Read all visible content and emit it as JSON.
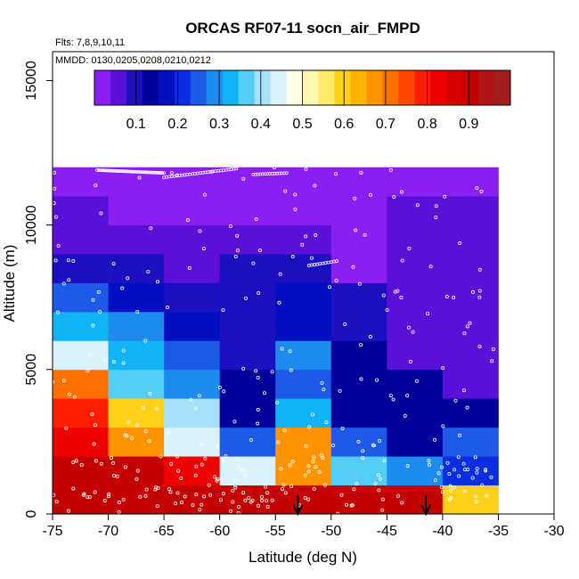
{
  "title": "ORCAS RF07-11 socn_air_FMPD",
  "flights_note": "Flts: 7,8,9,10,11",
  "dates_note": "MMDD: 0130,0205,0208,0210,0212",
  "chart_data": {
    "type": "heatmap",
    "title": "ORCAS RF07-11 socn_air_FMPD",
    "xlabel": "Latitude (deg N)",
    "ylabel": "Altitude (m)",
    "xlim": [
      -75,
      -30
    ],
    "ylim": [
      0,
      16000
    ],
    "x_ticks": [
      -75,
      -70,
      -65,
      -60,
      -55,
      -50,
      -45,
      -40,
      -35,
      -30
    ],
    "x_tick_labels": [
      "-75",
      "-70",
      "-65",
      "-60",
      "-55",
      "-50",
      "-45",
      "-40",
      "-35",
      "-30"
    ],
    "y_ticks": [
      0,
      5000,
      10000,
      15000
    ],
    "y_tick_labels": [
      "0",
      "5000",
      "10000",
      "15000"
    ],
    "grid": false,
    "lat_bins": [
      -75,
      -70,
      -65,
      -60,
      -55,
      -50,
      -45,
      -40,
      -35
    ],
    "alt_bins": [
      0,
      1000,
      2000,
      3000,
      4000,
      5000,
      6000,
      7000,
      8000,
      9000,
      10000,
      11000,
      12000
    ],
    "values_by_alt_row": [
      [
        0.9,
        0.9,
        0.9,
        0.92,
        0.92,
        0.92,
        0.92,
        0.6
      ],
      [
        0.92,
        0.92,
        0.83,
        0.46,
        0.66,
        0.36,
        0.3,
        0.22
      ],
      [
        0.82,
        0.66,
        0.46,
        0.24,
        0.66,
        0.24,
        0.14,
        0.24
      ],
      [
        0.77,
        0.6,
        0.4,
        0.12,
        0.32,
        0.14,
        0.14,
        0.12
      ],
      [
        0.7,
        0.38,
        0.3,
        0.12,
        0.24,
        0.12,
        0.12,
        0.05
      ],
      [
        0.44,
        0.32,
        0.24,
        0.1,
        0.28,
        0.12,
        0.05,
        0.04
      ],
      [
        0.32,
        0.3,
        0.18,
        0.1,
        0.18,
        0.1,
        0.05,
        0.04
      ],
      [
        0.24,
        0.18,
        0.1,
        0.1,
        0.16,
        0.08,
        0.04,
        0.04
      ],
      [
        0.1,
        0.1,
        0.05,
        0.1,
        0.1,
        0.03,
        0.04,
        0.04
      ],
      [
        0.06,
        0.05,
        0.04,
        0.04,
        0.05,
        0.03,
        0.04,
        0.04
      ],
      [
        0.04,
        0.03,
        0.03,
        0.03,
        0.02,
        0.03,
        0.04,
        0.04
      ],
      [
        0.02,
        0.02,
        0.02,
        0.02,
        0.02,
        0.02,
        0.02,
        0.02
      ]
    ],
    "arrow_latitudes": [
      -53,
      -41.5
    ],
    "colorbar": {
      "range": [
        0,
        1
      ],
      "ticks": [
        0.1,
        0.2,
        0.3,
        0.4,
        0.5,
        0.6,
        0.7,
        0.8,
        0.9
      ],
      "tick_labels": [
        "0.1",
        "0.2",
        "0.3",
        "0.4",
        "0.5",
        "0.6",
        "0.7",
        "0.8",
        "0.9"
      ],
      "colors": [
        "#8B1EF2",
        "#5A10D8",
        "#1C0FC0",
        "#00009A",
        "#0010C0",
        "#0A2DE0",
        "#1E5AE8",
        "#1E8CEE",
        "#10B4F5",
        "#55CDF7",
        "#A6E0FA",
        "#DAF2FC",
        "#FFFFE6",
        "#FFF6B0",
        "#FFEA6A",
        "#FFD11A",
        "#FFB300",
        "#FF9400",
        "#FF7000",
        "#FF4800",
        "#FF1E00",
        "#EE0000",
        "#D80000",
        "#C40000",
        "#AE1515",
        "#A01E1E"
      ]
    }
  }
}
